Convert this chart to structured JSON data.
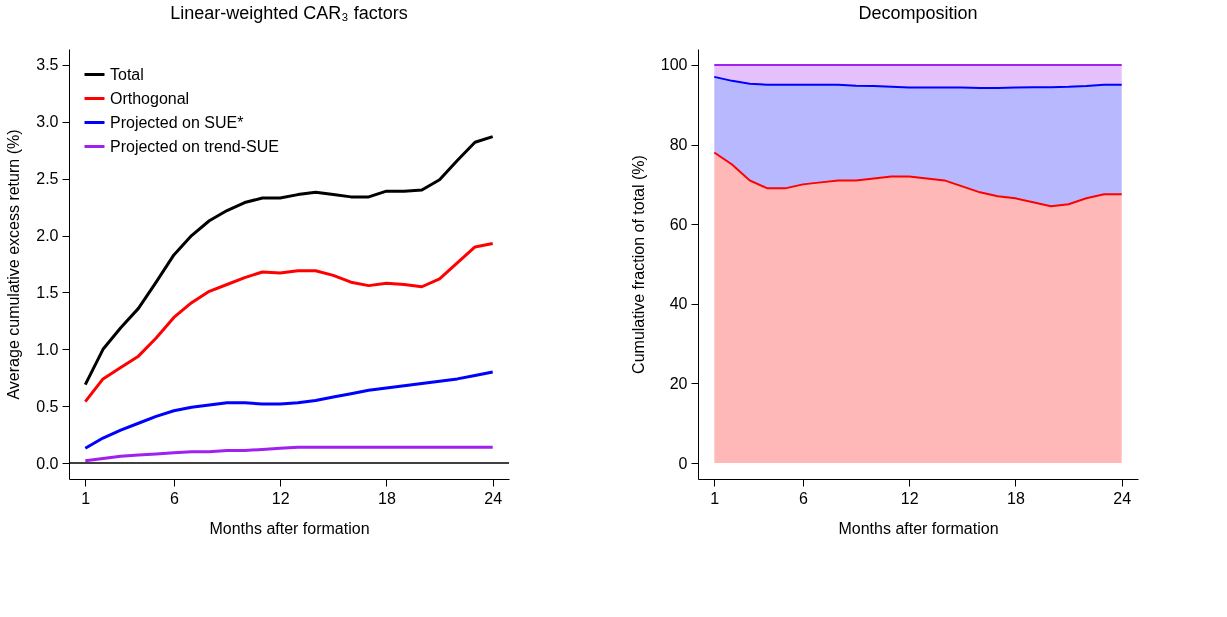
{
  "chart_data": [
    {
      "type": "line",
      "title": "Linear-weighted CAR₃ factors",
      "xlabel": "Months after formation",
      "ylabel": "Average cumulative excess return (%)",
      "x": [
        1,
        2,
        3,
        4,
        5,
        6,
        7,
        8,
        9,
        10,
        11,
        12,
        13,
        14,
        15,
        16,
        17,
        18,
        19,
        20,
        21,
        22,
        23,
        24
      ],
      "series": [
        {
          "name": "Total",
          "color": "#000000",
          "values": [
            0.69,
            1.0,
            1.19,
            1.36,
            1.59,
            1.83,
            2.0,
            2.13,
            2.22,
            2.29,
            2.33,
            2.33,
            2.36,
            2.38,
            2.36,
            2.34,
            2.34,
            2.39,
            2.39,
            2.4,
            2.49,
            2.66,
            2.82,
            2.87
          ]
        },
        {
          "name": "Orthogonal",
          "color": "#ff0000",
          "values": [
            0.54,
            0.74,
            0.84,
            0.94,
            1.1,
            1.28,
            1.41,
            1.51,
            1.57,
            1.63,
            1.68,
            1.67,
            1.69,
            1.69,
            1.65,
            1.59,
            1.56,
            1.58,
            1.57,
            1.55,
            1.62,
            1.76,
            1.9,
            1.93
          ]
        },
        {
          "name": "Projected on SUE*",
          "color": "#0000ff",
          "values": [
            0.13,
            0.22,
            0.29,
            0.35,
            0.41,
            0.46,
            0.49,
            0.51,
            0.53,
            0.53,
            0.52,
            0.52,
            0.53,
            0.55,
            0.58,
            0.61,
            0.64,
            0.66,
            0.68,
            0.7,
            0.72,
            0.74,
            0.77,
            0.8
          ]
        },
        {
          "name": "Projected on trend-SUE",
          "color": "#a020f0",
          "values": [
            0.02,
            0.04,
            0.06,
            0.07,
            0.08,
            0.09,
            0.1,
            0.1,
            0.11,
            0.11,
            0.12,
            0.13,
            0.14,
            0.14,
            0.14,
            0.14,
            0.14,
            0.14,
            0.14,
            0.14,
            0.14,
            0.14,
            0.14,
            0.14
          ]
        }
      ],
      "xlim": [
        0.08,
        24.92
      ],
      "xticks": [
        1,
        6,
        12,
        18,
        24
      ],
      "ylim": [
        -0.14,
        3.64
      ],
      "yticks": [
        {
          "value": 0,
          "label": "0.0"
        },
        {
          "value": 0.5,
          "label": "0.5"
        },
        {
          "value": 1,
          "label": "1.0"
        },
        {
          "value": 1.5,
          "label": "1.5"
        },
        {
          "value": 2,
          "label": "2.0"
        },
        {
          "value": 2.5,
          "label": "2.5"
        },
        {
          "value": 3,
          "label": "3.0"
        },
        {
          "value": 3.5,
          "label": "3.5"
        }
      ],
      "ref_lines": [
        {
          "axis": "y",
          "value": 0,
          "color": "#000000"
        }
      ],
      "grid": false,
      "legend": "top left"
    },
    {
      "type": "area",
      "stacked": true,
      "title": "Decomposition",
      "xlabel": "Months after formation",
      "ylabel": "Cumulative fraction of total (%)",
      "x": [
        1,
        2,
        3,
        4,
        5,
        6,
        7,
        8,
        9,
        10,
        11,
        12,
        13,
        14,
        15,
        16,
        17,
        18,
        19,
        20,
        21,
        22,
        23,
        24
      ],
      "series": [
        {
          "color": "#ff0000",
          "values": [
            78,
            75,
            71,
            69,
            69,
            70,
            70.5,
            71,
            71,
            71.5,
            72,
            72,
            71.5,
            71,
            69.5,
            68,
            67,
            66.5,
            65.5,
            64.5,
            65,
            66.5,
            67.5,
            67.5
          ]
        },
        {
          "color": "#0000ff",
          "values": [
            19,
            21,
            24.3,
            26,
            26,
            25,
            24.5,
            24,
            23.8,
            23.2,
            22.5,
            22.3,
            22.8,
            23.3,
            24.8,
            26.2,
            27.2,
            27.8,
            28.9,
            29.9,
            29.5,
            28.2,
            27.5,
            27.5
          ]
        },
        {
          "color": "#a020f0",
          "values": [
            3,
            4,
            4.7,
            5,
            5,
            5,
            5,
            5,
            5.2,
            5.3,
            5.5,
            5.7,
            5.7,
            5.7,
            5.7,
            5.8,
            5.8,
            5.7,
            5.6,
            5.6,
            5.5,
            5.3,
            5,
            5
          ]
        }
      ],
      "xlim": [
        0.08,
        24.92
      ],
      "xticks": [
        1,
        6,
        12,
        18,
        24
      ],
      "ylim": [
        -4,
        104
      ],
      "yticks": [
        0,
        20,
        40,
        60,
        80,
        100
      ],
      "grid": false,
      "legend": false
    }
  ]
}
